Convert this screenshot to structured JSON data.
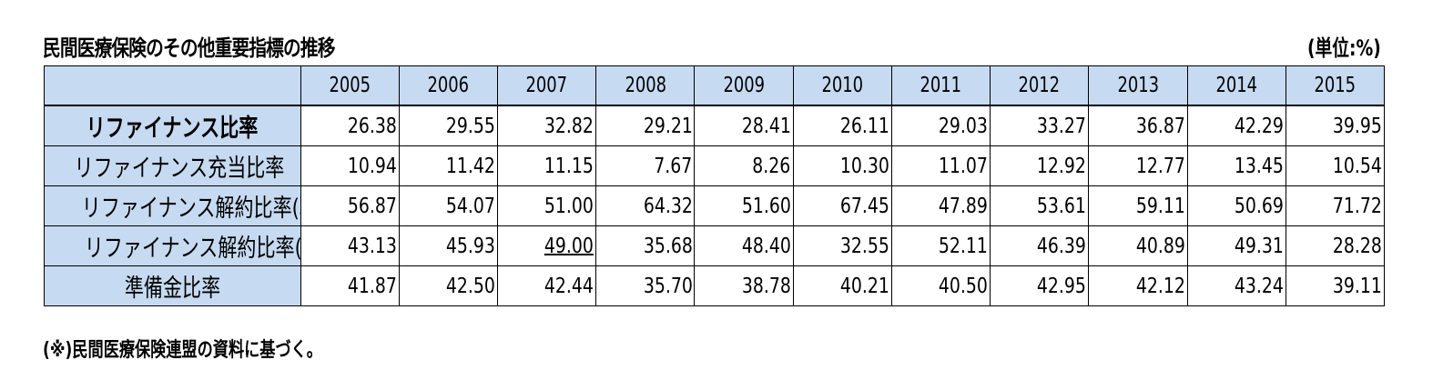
{
  "title": "民間医療保険のその他重要指標の推移",
  "unit": "(単位:%)",
  "note": "(※)民間医療保険連盟の資料に基づく。",
  "table": {
    "years": [
      "2005",
      "2006",
      "2007",
      "2008",
      "2009",
      "2010",
      "2011",
      "2012",
      "2013",
      "2014",
      "2015"
    ],
    "rows": [
      {
        "label": "リファイナンス比率",
        "bold": true,
        "values": [
          "26.38",
          "29.55",
          "32.82",
          "29.21",
          "28.41",
          "26.11",
          "29.03",
          "33.27",
          "36.87",
          "42.29",
          "39.95"
        ]
      },
      {
        "label": "リファイナンス充当比率",
        "bold": false,
        "values": [
          "10.94",
          "11.42",
          "11.15",
          "7.67",
          "8.26",
          "10.30",
          "11.07",
          "12.92",
          "12.77",
          "13.45",
          "10.54"
        ]
      },
      {
        "label": "リファイナンス解約比率(現金)",
        "bold": false,
        "values": [
          "56.87",
          "54.07",
          "51.00",
          "64.32",
          "51.60",
          "67.45",
          "47.89",
          "53.61",
          "59.11",
          "50.69",
          "71.72"
        ]
      },
      {
        "label": "リファイナンス解約比率(一時金)",
        "bold": false,
        "values": [
          "43.13",
          "45.93",
          "49.00",
          "35.68",
          "48.40",
          "32.55",
          "52.11",
          "46.39",
          "40.89",
          "49.31",
          "28.28"
        ],
        "underline_index": 2
      },
      {
        "label": "準備金比率",
        "bold": false,
        "values": [
          "41.87",
          "42.50",
          "42.44",
          "35.70",
          "38.78",
          "40.21",
          "40.50",
          "42.95",
          "42.12",
          "43.24",
          "39.11"
        ]
      }
    ]
  }
}
